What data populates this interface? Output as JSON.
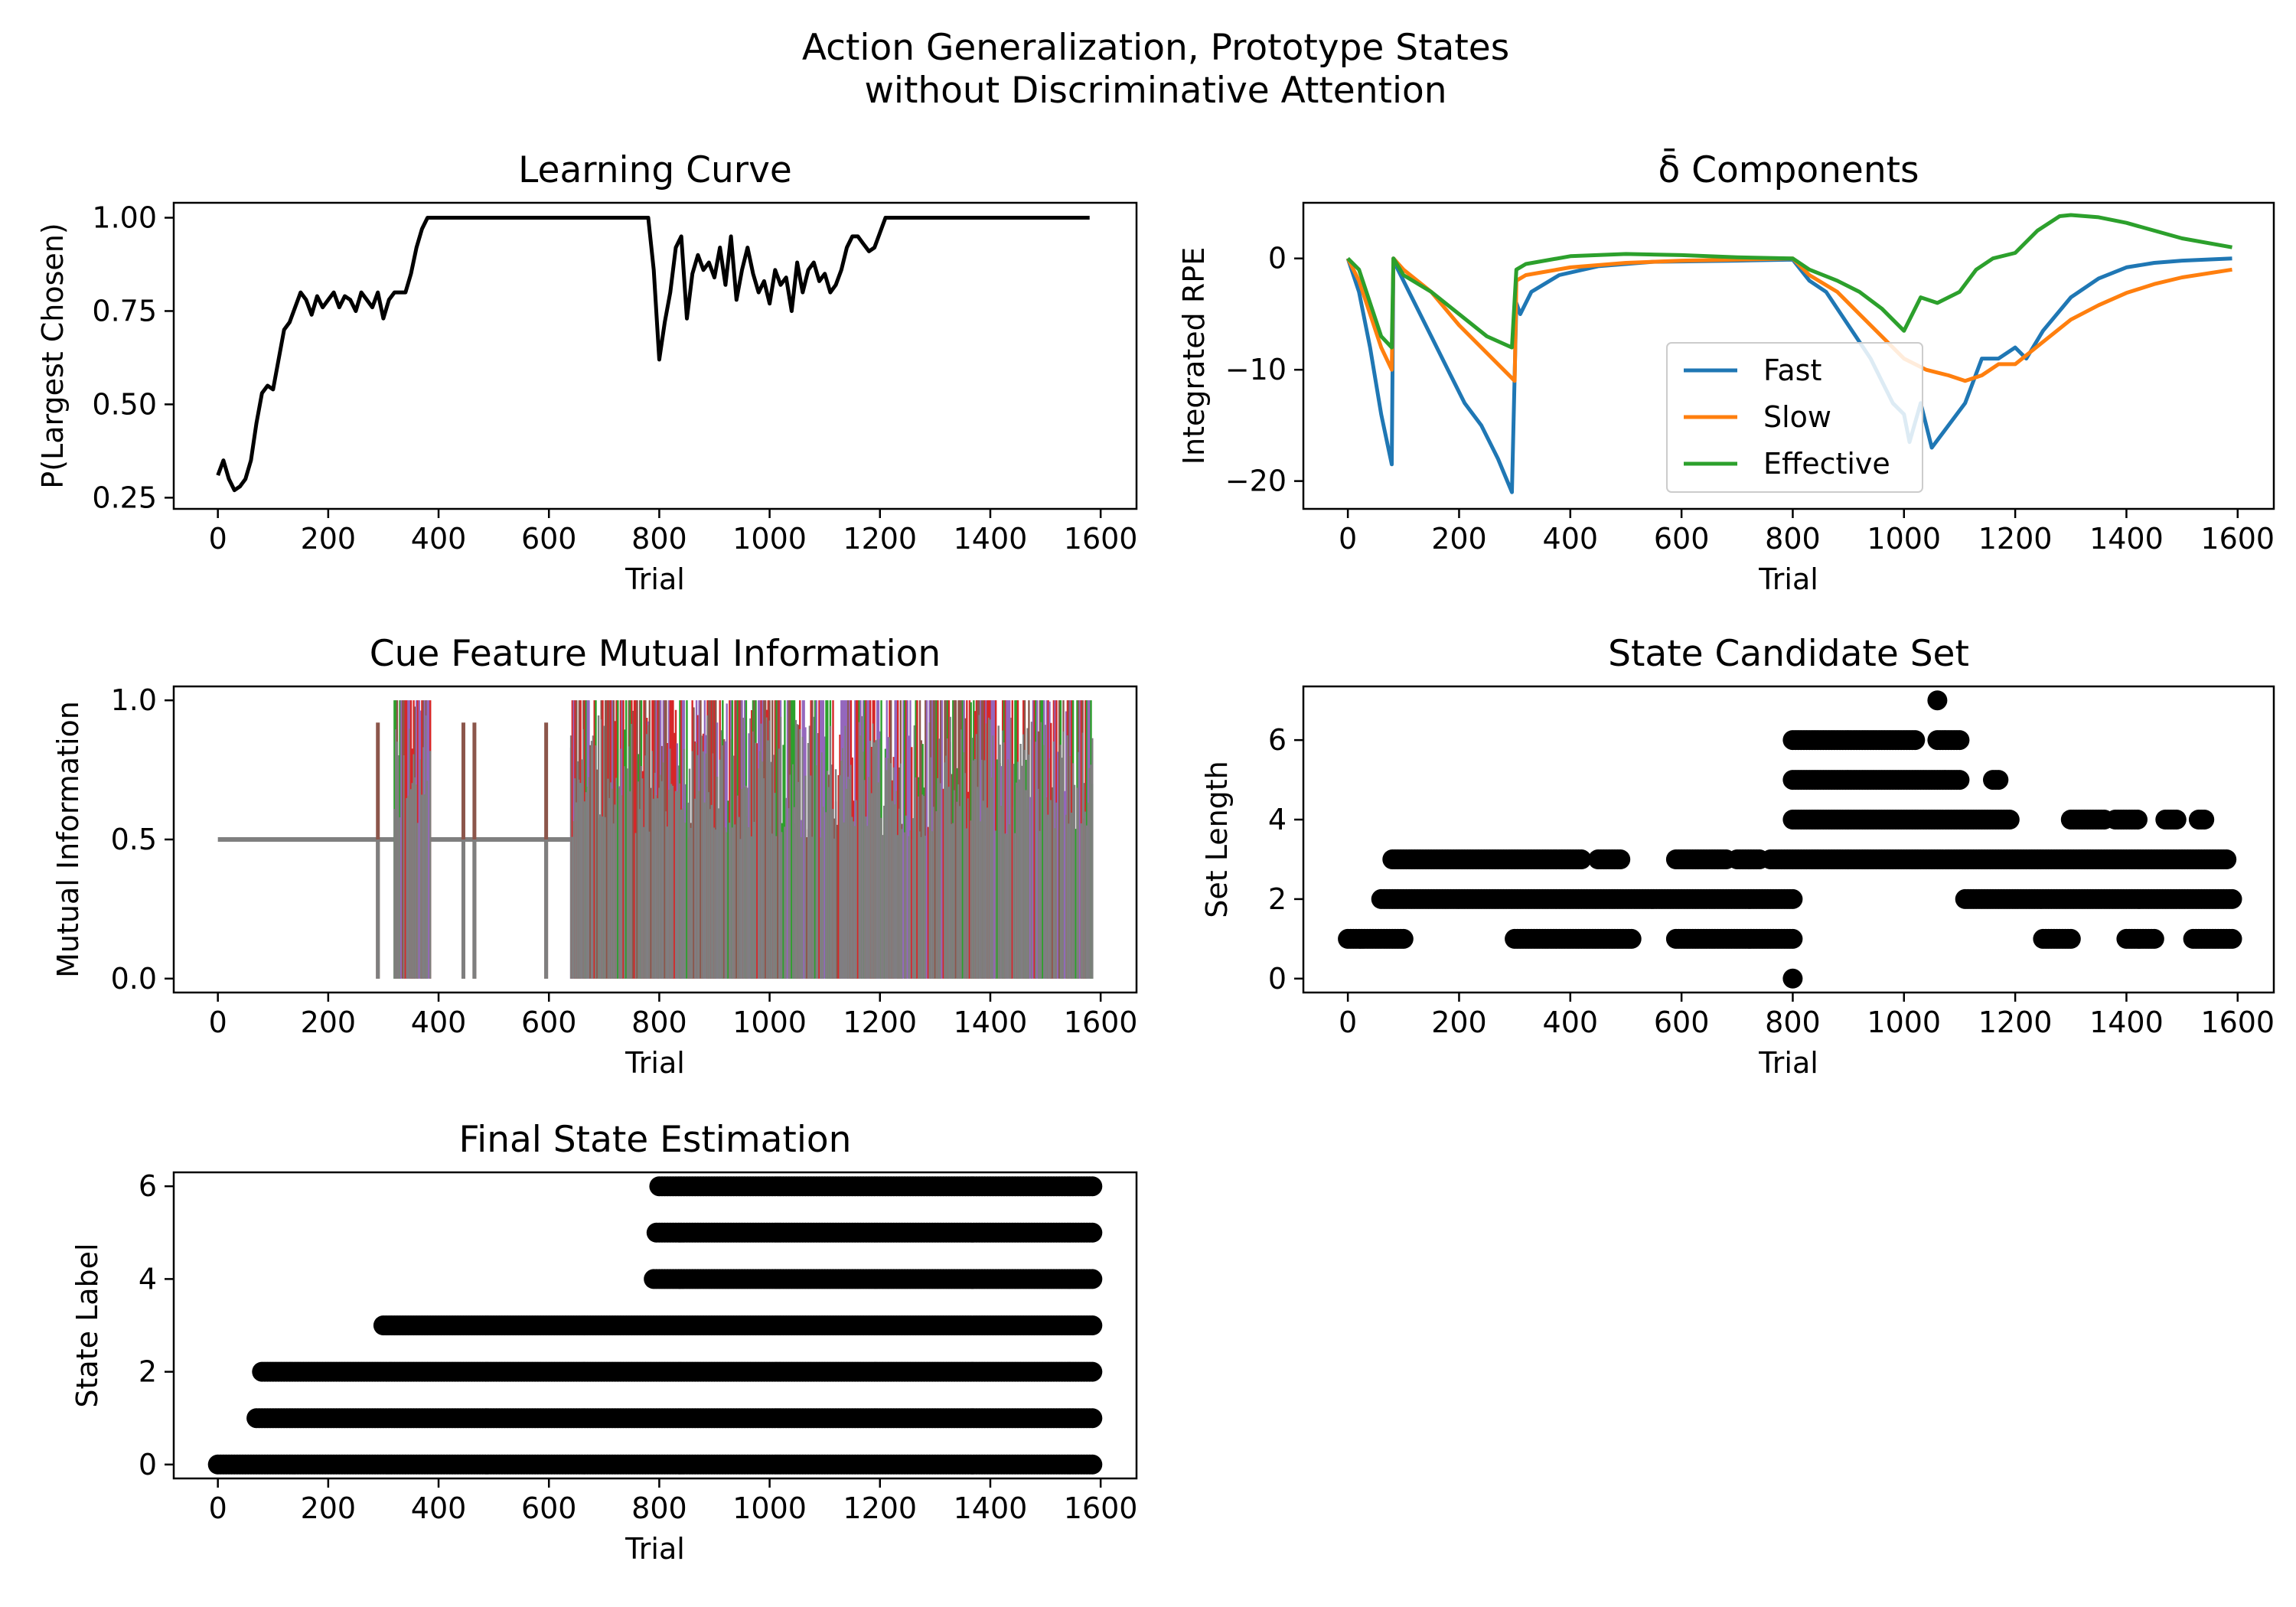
{
  "figure": {
    "title_line1": "Action Generalization, Prototype States",
    "title_line2": "without Discriminative Attention"
  },
  "chart_data": [
    {
      "id": "learning",
      "type": "line",
      "title": "Learning Curve",
      "xlabel": "Trial",
      "ylabel": "P(Largest Chosen)",
      "xlim": [
        -80,
        1665
      ],
      "ylim": [
        0.22,
        1.04
      ],
      "xticks": [
        0,
        200,
        400,
        600,
        800,
        1000,
        1200,
        1400,
        1600
      ],
      "yticks": [
        0.25,
        0.5,
        0.75,
        1.0
      ],
      "ytick_labels": [
        "0.25",
        "0.50",
        "0.75",
        "1.00"
      ],
      "series": [
        {
          "color": "#000000",
          "x": [
            0,
            10,
            20,
            30,
            40,
            50,
            60,
            70,
            80,
            90,
            100,
            110,
            120,
            130,
            140,
            150,
            160,
            170,
            180,
            190,
            200,
            210,
            220,
            230,
            240,
            250,
            260,
            270,
            280,
            290,
            300,
            310,
            320,
            330,
            340,
            350,
            360,
            370,
            380,
            390,
            400,
            450,
            500,
            600,
            700,
            780,
            790,
            800,
            810,
            820,
            830,
            840,
            850,
            860,
            870,
            880,
            890,
            900,
            910,
            920,
            930,
            940,
            950,
            960,
            970,
            980,
            990,
            1000,
            1010,
            1020,
            1030,
            1040,
            1050,
            1060,
            1070,
            1080,
            1090,
            1100,
            1110,
            1120,
            1130,
            1140,
            1150,
            1160,
            1170,
            1180,
            1190,
            1200,
            1210,
            1220,
            1300,
            1400,
            1500,
            1580
          ],
          "y": [
            0.31,
            0.35,
            0.3,
            0.27,
            0.28,
            0.3,
            0.35,
            0.45,
            0.53,
            0.55,
            0.54,
            0.62,
            0.7,
            0.72,
            0.76,
            0.8,
            0.78,
            0.74,
            0.79,
            0.76,
            0.78,
            0.8,
            0.76,
            0.79,
            0.78,
            0.75,
            0.8,
            0.78,
            0.76,
            0.8,
            0.73,
            0.78,
            0.8,
            0.8,
            0.8,
            0.85,
            0.92,
            0.97,
            1.0,
            1.0,
            1.0,
            1.0,
            1.0,
            1.0,
            1.0,
            1.0,
            0.86,
            0.62,
            0.72,
            0.8,
            0.92,
            0.95,
            0.73,
            0.85,
            0.9,
            0.86,
            0.88,
            0.84,
            0.92,
            0.82,
            0.95,
            0.78,
            0.86,
            0.92,
            0.85,
            0.8,
            0.83,
            0.77,
            0.86,
            0.82,
            0.84,
            0.75,
            0.88,
            0.8,
            0.86,
            0.88,
            0.83,
            0.85,
            0.8,
            0.82,
            0.86,
            0.92,
            0.95,
            0.95,
            0.93,
            0.91,
            0.92,
            0.96,
            1.0,
            1.0,
            1.0,
            1.0,
            1.0,
            1.0
          ]
        }
      ]
    },
    {
      "id": "delta",
      "type": "line",
      "title": "δ̄ Components",
      "xlabel": "Trial",
      "ylabel": "Integrated RPE",
      "xlim": [
        -80,
        1665
      ],
      "ylim": [
        -22.5,
        5
      ],
      "xticks": [
        0,
        200,
        400,
        600,
        800,
        1000,
        1200,
        1400,
        1600
      ],
      "yticks": [
        0,
        -10,
        -20
      ],
      "ytick_labels": [
        "0",
        "−10",
        "−20"
      ],
      "legend": "center",
      "series": [
        {
          "name": "Fast",
          "color": "#1f77b4",
          "x": [
            0,
            20,
            40,
            60,
            79,
            82,
            90,
            120,
            150,
            180,
            210,
            240,
            270,
            295,
            303,
            310,
            330,
            380,
            450,
            550,
            700,
            800,
            830,
            860,
            900,
            940,
            960,
            980,
            1000,
            1010,
            1030,
            1050,
            1080,
            1110,
            1140,
            1170,
            1200,
            1220,
            1250,
            1300,
            1350,
            1400,
            1450,
            1500,
            1590
          ],
          "y": [
            0,
            -3,
            -8,
            -14,
            -18.5,
            0,
            -1,
            -4,
            -7,
            -10,
            -13,
            -15,
            -18,
            -21,
            -4,
            -5,
            -3,
            -1.5,
            -0.7,
            -0.3,
            -0.2,
            -0.1,
            -2,
            -3,
            -6,
            -9,
            -11,
            -13,
            -14,
            -16.5,
            -13,
            -17,
            -15,
            -13,
            -9,
            -9,
            -8,
            -9,
            -6.5,
            -3.5,
            -1.8,
            -0.8,
            -0.4,
            -0.2,
            0
          ]
        },
        {
          "name": "Slow",
          "color": "#ff7f0e",
          "x": [
            0,
            20,
            40,
            60,
            79,
            82,
            100,
            150,
            200,
            250,
            300,
            303,
            320,
            400,
            500,
            600,
            700,
            800,
            830,
            880,
            920,
            960,
            1000,
            1040,
            1080,
            1110,
            1140,
            1170,
            1200,
            1250,
            1300,
            1350,
            1400,
            1450,
            1500,
            1590
          ],
          "y": [
            0,
            -2,
            -5,
            -8,
            -10,
            0,
            -1,
            -3,
            -6,
            -8.5,
            -11,
            -2,
            -1.5,
            -0.8,
            -0.4,
            -0.2,
            -0.1,
            0,
            -1.5,
            -3,
            -5,
            -7,
            -9,
            -10,
            -10.5,
            -11,
            -10.5,
            -9.5,
            -9.5,
            -7.5,
            -5.5,
            -4.2,
            -3.1,
            -2.3,
            -1.7,
            -1
          ]
        },
        {
          "name": "Effective",
          "color": "#2ca02c",
          "x": [
            0,
            20,
            40,
            60,
            79,
            82,
            100,
            150,
            200,
            250,
            295,
            303,
            320,
            400,
            500,
            600,
            700,
            800,
            830,
            880,
            920,
            960,
            1000,
            1030,
            1060,
            1100,
            1130,
            1160,
            1200,
            1240,
            1280,
            1300,
            1350,
            1400,
            1450,
            1500,
            1590
          ],
          "y": [
            0,
            -1,
            -4,
            -7,
            -8,
            0,
            -1.5,
            -3,
            -5,
            -7,
            -8,
            -1,
            -0.5,
            0.2,
            0.4,
            0.3,
            0.1,
            0,
            -1,
            -2,
            -3,
            -4.5,
            -6.5,
            -3.5,
            -4,
            -3,
            -1,
            0,
            0.5,
            2.5,
            3.8,
            3.9,
            3.7,
            3.2,
            2.5,
            1.8,
            1
          ]
        }
      ]
    },
    {
      "id": "mutual",
      "type": "line",
      "title": "Cue Feature Mutual Information",
      "xlabel": "Trial",
      "ylabel": "Mutual Information",
      "xlim": [
        -80,
        1665
      ],
      "ylim": [
        -0.05,
        1.05
      ],
      "xticks": [
        0,
        200,
        400,
        600,
        800,
        1000,
        1200,
        1400,
        1600
      ],
      "yticks": [
        0.0,
        0.5,
        1.0
      ],
      "ytick_labels": [
        "0.0",
        "0.5",
        "1.0"
      ],
      "series": [
        {
          "color": "#7f7f7f",
          "baseline": 0.5,
          "x_range": [
            0,
            1585
          ],
          "dense_segments": [
            [
              320,
              385
            ],
            [
              640,
              1585
            ]
          ],
          "spikes_up": [
            290,
            445,
            465,
            595
          ],
          "accent_colors": [
            "#d62728",
            "#8c564b",
            "#2ca02c",
            "#9467bd"
          ]
        }
      ]
    },
    {
      "id": "candidate",
      "type": "scatter",
      "title": "State Candidate Set",
      "xlabel": "Trial",
      "ylabel": "Set Length",
      "xlim": [
        -80,
        1665
      ],
      "ylim": [
        -0.35,
        7.35
      ],
      "xticks": [
        0,
        200,
        400,
        600,
        800,
        1000,
        1200,
        1400,
        1600
      ],
      "yticks": [
        0,
        2,
        4,
        6
      ],
      "ytick_labels": [
        "0",
        "2",
        "4",
        "6"
      ],
      "series": [
        {
          "color": "#000000",
          "bands": [
            {
              "y": 1,
              "x_ranges": [
                [
                  0,
                  100
                ],
                [
                  300,
                  510
                ],
                [
                  590,
                  800
                ],
                [
                  1250,
                  1300
                ],
                [
                  1400,
                  1450
                ],
                [
                  1520,
                  1590
                ]
              ]
            },
            {
              "y": 2,
              "x_ranges": [
                [
                  60,
                  800
                ],
                [
                  1110,
                  1590
                ]
              ]
            },
            {
              "y": 3,
              "x_ranges": [
                [
                  80,
                  420
                ],
                [
                  450,
                  490
                ],
                [
                  590,
                  680
                ],
                [
                  700,
                  740
                ],
                [
                  760,
                  1580
                ]
              ]
            },
            {
              "y": 4,
              "x_ranges": [
                [
                  800,
                  1190
                ],
                [
                  1300,
                  1360
                ],
                [
                  1380,
                  1420
                ],
                [
                  1470,
                  1490
                ],
                [
                  1530,
                  1540
                ]
              ]
            },
            {
              "y": 5,
              "x_ranges": [
                [
                  800,
                  1100
                ],
                [
                  1160,
                  1170
                ]
              ]
            },
            {
              "y": 6,
              "x_ranges": [
                [
                  800,
                  1020
                ],
                [
                  1060,
                  1100
                ]
              ]
            },
            {
              "y": 7,
              "x_ranges": [
                [
                  1060,
                  1060
                ]
              ]
            },
            {
              "y": 0,
              "x_ranges": [
                [
                  800,
                  800
                ]
              ]
            }
          ]
        }
      ]
    },
    {
      "id": "final",
      "type": "scatter",
      "title": "Final State Estimation",
      "xlabel": "Trial",
      "ylabel": "State Label",
      "xlim": [
        -80,
        1665
      ],
      "ylim": [
        -0.3,
        6.3
      ],
      "xticks": [
        0,
        200,
        400,
        600,
        800,
        1000,
        1200,
        1400,
        1600
      ],
      "yticks": [
        0,
        2,
        4,
        6
      ],
      "ytick_labels": [
        "0",
        "2",
        "4",
        "6"
      ],
      "series": [
        {
          "color": "#000000",
          "bands": [
            {
              "y": 0,
              "x_ranges": [
                [
                  0,
                  1585
                ]
              ]
            },
            {
              "y": 1,
              "x_ranges": [
                [
                  70,
                  1585
                ]
              ]
            },
            {
              "y": 2,
              "x_ranges": [
                [
                  80,
                  1585
                ]
              ]
            },
            {
              "y": 3,
              "x_ranges": [
                [
                  300,
                  1585
                ]
              ]
            },
            {
              "y": 4,
              "x_ranges": [
                [
                  790,
                  1585
                ]
              ]
            },
            {
              "y": 5,
              "x_ranges": [
                [
                  795,
                  1585
                ]
              ]
            },
            {
              "y": 6,
              "x_ranges": [
                [
                  800,
                  1585
                ]
              ]
            }
          ]
        }
      ]
    }
  ]
}
